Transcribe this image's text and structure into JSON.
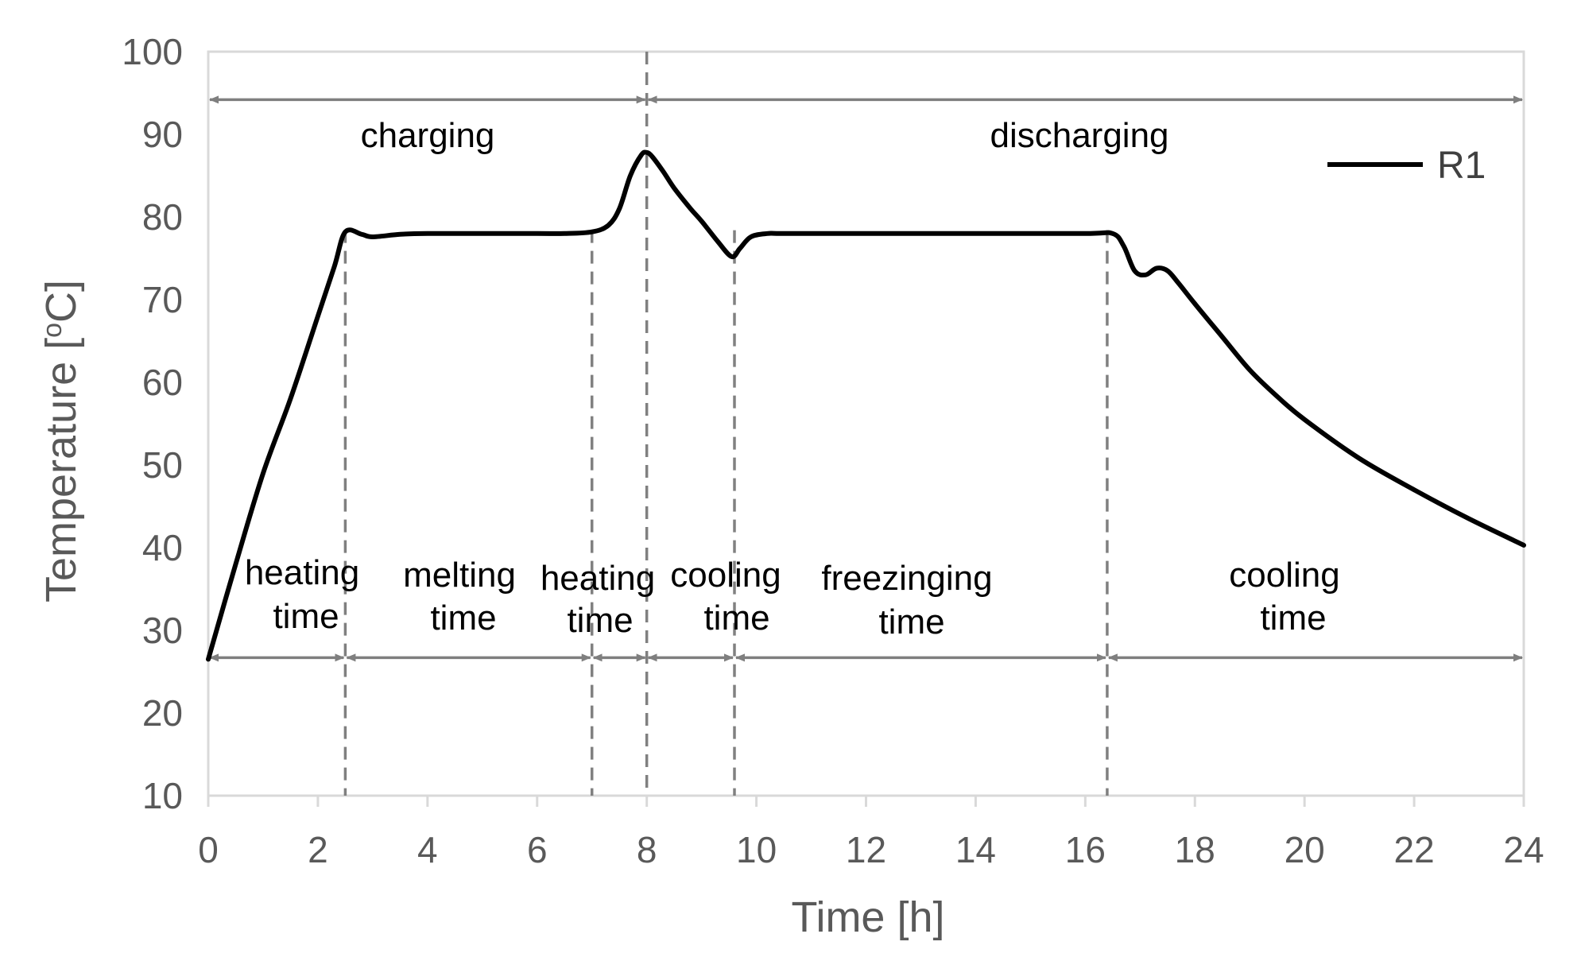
{
  "chart_data": {
    "type": "line",
    "xlabel": "Time [h]",
    "ylabel": "Temperature [oC]",
    "ylabel_base": "Temperature [",
    "ylabel_sup": "o",
    "ylabel_tail": "C]",
    "xlim": [
      0,
      24
    ],
    "ylim": [
      10,
      100
    ],
    "x_ticks": [
      0,
      2,
      4,
      6,
      8,
      10,
      12,
      14,
      16,
      18,
      20,
      22,
      24
    ],
    "y_ticks": [
      10,
      20,
      30,
      40,
      50,
      60,
      70,
      80,
      90,
      100
    ],
    "grid": false,
    "legend": {
      "position": "top-right",
      "label": "R1"
    },
    "series": [
      {
        "name": "R1",
        "color": "#000000",
        "x": [
          0,
          0.5,
          1.0,
          1.5,
          2.0,
          2.3,
          2.5,
          2.8,
          3.0,
          3.5,
          4,
          5,
          6,
          6.5,
          7.0,
          7.3,
          7.5,
          7.7,
          7.9,
          8.0,
          8.1,
          8.3,
          8.5,
          8.8,
          9.0,
          9.3,
          9.55,
          9.7,
          9.9,
          10.2,
          10.5,
          12,
          14,
          16,
          16.5,
          16.7,
          16.9,
          17.1,
          17.3,
          17.5,
          17.7,
          18.0,
          18.5,
          19.0,
          19.5,
          20.0,
          21.0,
          22.0,
          23.0,
          24.0
        ],
        "y": [
          26.5,
          38,
          49,
          58,
          68,
          74,
          78.2,
          77.9,
          77.6,
          77.9,
          78,
          78,
          78,
          78,
          78.2,
          79,
          81,
          85,
          87.5,
          87.8,
          87.3,
          85.5,
          83.5,
          81,
          79.5,
          77,
          75.2,
          76.2,
          77.6,
          78,
          78,
          78,
          78,
          78,
          78,
          76.5,
          73.5,
          73,
          73.8,
          73.5,
          72,
          69.5,
          65.5,
          61.5,
          58.3,
          55.5,
          50.8,
          47,
          43.5,
          40.3
        ]
      }
    ],
    "phase_lines_h": [
      2.5,
      7.0,
      8.0,
      9.6,
      16.4
    ],
    "top_span": {
      "charging": {
        "label": "charging",
        "from": 0,
        "to": 8,
        "y": 94.2
      },
      "discharging": {
        "label": "discharging",
        "from": 8,
        "to": 24,
        "y": 94.2
      }
    },
    "bottom_y": 26.7,
    "bottom_spans": [
      {
        "from": 0,
        "to": 2.5,
        "line1": "heating",
        "line2": "time"
      },
      {
        "from": 2.5,
        "to": 7.0,
        "line1": "melting",
        "line2": "time"
      },
      {
        "from": 7.0,
        "to": 8.0,
        "line1": "heating",
        "line2": "time"
      },
      {
        "from": 8.0,
        "to": 9.6,
        "line1": "cooling",
        "line2": "time"
      },
      {
        "from": 9.6,
        "to": 16.4,
        "line1": "freezinging",
        "line2": "time"
      },
      {
        "from": 16.4,
        "to": 24,
        "line1": "cooling",
        "line2": "time"
      }
    ],
    "colors": {
      "axis": "#d9d9d9",
      "guide": "#808080",
      "arrow": "#7f7f7f",
      "line": "#000000"
    }
  }
}
